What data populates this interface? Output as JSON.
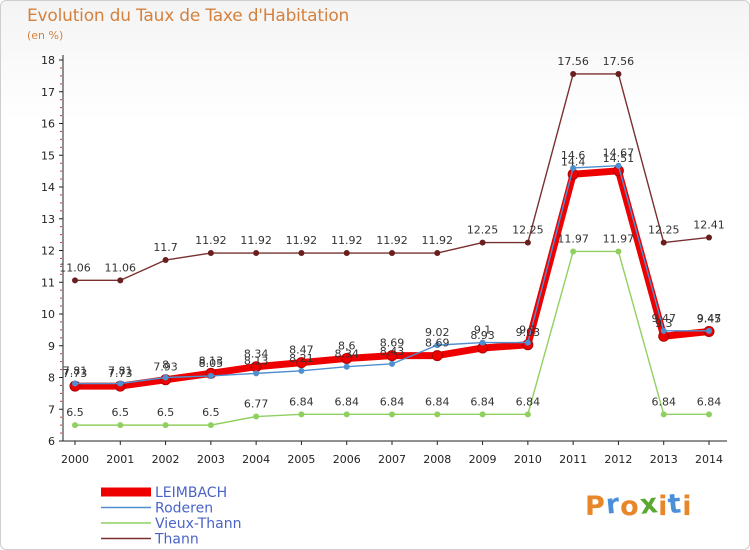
{
  "header": {
    "title": "Evolution du Taux de Taxe d'Habitation",
    "unit": "(en %)"
  },
  "logo": {
    "letters": [
      "P",
      "r",
      "o",
      "x",
      "i",
      "t",
      "i"
    ],
    "colors": [
      "#e8872a",
      "#4a90d9",
      "#e8872a",
      "#5aa832",
      "#e8872a",
      "#4a90d9",
      "#e8872a"
    ]
  },
  "chart_data": {
    "type": "line",
    "title": "Evolution du Taux de Taxe d'Habitation",
    "ylabel": "(en %)",
    "ylim": [
      6,
      18
    ],
    "yticks": [
      "6",
      "7",
      "8",
      "9",
      "10",
      "11",
      "12",
      "13",
      "14",
      "15",
      "16",
      "17",
      "18"
    ],
    "x": [
      "2000",
      "2001",
      "2002",
      "2003",
      "2004",
      "2005",
      "2006",
      "2007",
      "2008",
      "2009",
      "2010",
      "2011",
      "2012",
      "2013",
      "2014"
    ],
    "grid": false,
    "legend_position": "bottom-left",
    "series": [
      {
        "name": "LEIMBACH",
        "color": "#ee0000",
        "marker": "#ee0000",
        "values": [
          7.73,
          7.73,
          7.93,
          8.13,
          8.34,
          8.47,
          8.6,
          8.69,
          8.69,
          8.93,
          9.03,
          14.4,
          14.51,
          9.3,
          9.45
        ],
        "labels": [
          "7.73",
          "7.73",
          "7.93",
          "8.13",
          "8.34",
          "8.47",
          "8.6",
          "8.69",
          "8.69",
          "8.93",
          "9.03",
          "14.4",
          "14.51",
          "9.3",
          "9.45"
        ]
      },
      {
        "name": "Roderen",
        "color": "#4f8fcf",
        "marker": "#4f8fcf",
        "values": [
          7.81,
          7.81,
          8.0,
          8.05,
          8.13,
          8.21,
          8.34,
          8.43,
          9.02,
          9.1,
          9.1,
          14.6,
          14.67,
          9.47,
          9.47
        ],
        "labels": [
          "7.81",
          "7.81",
          "8",
          "8.05",
          "8.13",
          "8.21",
          "8.34",
          "8.43",
          "9.02",
          "9.1",
          "9.1",
          "14.6",
          "14.67",
          "9.47",
          "9.47"
        ]
      },
      {
        "name": "Vieux-Thann",
        "color": "#90d060",
        "marker": "#90d060",
        "values": [
          6.5,
          6.5,
          6.5,
          6.5,
          6.77,
          6.84,
          6.84,
          6.84,
          6.84,
          6.84,
          6.84,
          11.97,
          11.97,
          6.84,
          6.84
        ],
        "labels": [
          "6.5",
          "6.5",
          "6.5",
          "6.5",
          "6.77",
          "6.84",
          "6.84",
          "6.84",
          "6.84",
          "6.84",
          "6.84",
          "11.97",
          "11.97",
          "6.84",
          "6.84"
        ]
      },
      {
        "name": "Thann",
        "color": "#7a3030",
        "marker": "#6a1f1f",
        "values": [
          11.06,
          11.06,
          11.7,
          11.92,
          11.92,
          11.92,
          11.92,
          11.92,
          11.92,
          12.25,
          12.25,
          17.56,
          17.56,
          12.25,
          12.41
        ],
        "labels": [
          "11.06",
          "11.06",
          "11.7",
          "11.92",
          "11.92",
          "11.92",
          "11.92",
          "11.92",
          "11.92",
          "12.25",
          "12.25",
          "17.56",
          "17.56",
          "12.25",
          "12.41"
        ]
      }
    ]
  }
}
